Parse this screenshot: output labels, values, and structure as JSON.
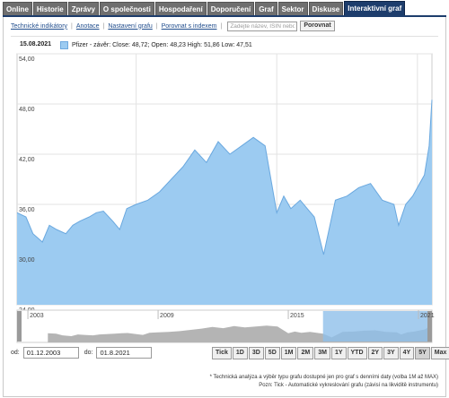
{
  "tabs": [
    "Online",
    "Historie",
    "Zprávy",
    "O společnosti",
    "Hospodaření",
    "Doporučení",
    "Graf",
    "Sektor",
    "Diskuse",
    "Interaktivní graf"
  ],
  "active_tab": 9,
  "toolbar": {
    "links": [
      "Technické indikátory",
      "Anotace",
      "Nastavení grafu",
      "Porovnat s indexem"
    ],
    "search_placeholder": "Zadejte název, ISIN nebo",
    "compare_label": "Porovnat"
  },
  "chart_header": {
    "date": "15.08.2021",
    "legend": "Pfizer - závěr: Close: 48,72; Open: 48,23 High: 51,86 Low: 47,51",
    "legend_color": "#9ccbf1"
  },
  "chart_data": {
    "type": "area",
    "title": "",
    "xlabel": "",
    "ylabel": "",
    "ylim": [
      24,
      54
    ],
    "yticks": [
      "54,00",
      "48,00",
      "42,00",
      "36,00",
      "30,00",
      "24,00"
    ],
    "series": [
      {
        "x": [
          2003.92,
          2004.3,
          2004.6,
          2005.0,
          2005.3,
          2005.6,
          2006.0,
          2006.3,
          2006.6,
          2007.0,
          2007.3,
          2007.6,
          2008.0,
          2008.3,
          2008.6,
          2009.0,
          2009.5,
          2010.0,
          2010.5,
          2011.0,
          2011.5,
          2012.0,
          2012.5,
          2013.0,
          2013.5,
          2014.0,
          2014.5,
          2015.0,
          2015.3,
          2015.6,
          2016.0,
          2016.3,
          2016.6,
          2017.0,
          2017.5,
          2018.0,
          2018.5,
          2019.0,
          2019.5,
          2020.0,
          2020.2,
          2020.5,
          2020.8,
          2021.0,
          2021.3,
          2021.5,
          2021.62
        ],
        "values": [
          35.0,
          34.5,
          32.5,
          31.5,
          33.5,
          33.0,
          32.5,
          33.5,
          34.0,
          34.5,
          35.0,
          35.2,
          34.0,
          33.0,
          35.5,
          36.0,
          36.5,
          37.5,
          39.0,
          40.5,
          42.5,
          41.0,
          43.5,
          42.0,
          43.0,
          44.0,
          43.0,
          35.0,
          37.0,
          35.5,
          36.5,
          35.5,
          34.5,
          30.0,
          36.5,
          37.0,
          38.0,
          38.5,
          36.5,
          36.0,
          33.5,
          36.0,
          37.0,
          38.0,
          39.5,
          43.0,
          48.5
        ]
      }
    ],
    "x_labels": [
      {
        "label": "2003",
        "x": 2003.0
      },
      {
        "label": "2009",
        "x": 2009.0
      },
      {
        "label": "2015",
        "x": 2015.0
      },
      {
        "label": "2021",
        "x": 2021.0
      }
    ],
    "grid": true,
    "fill_color": "#9ccbf1",
    "line_color": "#6aa8df",
    "navigator_color": "#b4b4b4",
    "navigator_selected_color": "#8fbfea"
  },
  "range": {
    "from_label": "od:",
    "from_value": "01.12.2003",
    "to_label": "do:",
    "to_value": "01.8.2021"
  },
  "periods": [
    "Tick",
    "1D",
    "3D",
    "5D",
    "1M",
    "2M",
    "3M",
    "1Y",
    "YTD",
    "2Y",
    "3Y",
    "4Y",
    "5Y",
    "Max"
  ],
  "active_period": 12,
  "footnotes": [
    "* Technická analýza a výběr typu grafu dostupné jen pro graf s denními daty (volba 1M až MAX)",
    "Pozn: Tick - Automatické vykreslování grafu (závisí na likviditě instrumentu)"
  ]
}
